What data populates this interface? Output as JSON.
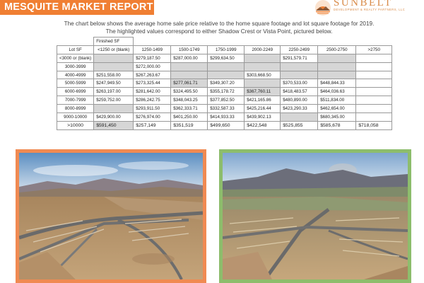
{
  "header": {
    "title": "MESQUITE MARKET REPORT",
    "logo_name": "SUNBELT",
    "logo_tagline": "DEVELOPMENT & REALTY PARTNERS, LLC",
    "logo_icon": "sunset-mountain-icon",
    "accent_color": "#f07f33"
  },
  "description": {
    "line1": "The chart below shows the average home sale price relative to the home square footage and lot square footage for 2019.",
    "line2": "The highlighted values correspond to either Shadow Crest or Vista Point, pictured below."
  },
  "table": {
    "finished_sf_label": "Finished SF",
    "lot_sf_label": "Lot SF",
    "columns": [
      "<1250 or (blank)",
      "1250-1499",
      "1500-1749",
      "1750-1999",
      "2000-2249",
      "2250-2499",
      "2500-2750",
      ">2750"
    ],
    "highlight_color": "#d6d6d6",
    "rows": [
      {
        "label": "<3000 or (blank)",
        "cells": [
          "",
          "$279,187.50",
          "$287,000.00",
          "$299,634.50",
          "",
          "$291,579.71",
          "",
          ""
        ],
        "hl": [
          true,
          false,
          false,
          false,
          true,
          false,
          true,
          false
        ]
      },
      {
        "label": "3000-3999",
        "cells": [
          "",
          "$272,000.00",
          "",
          "",
          "",
          "",
          "",
          ""
        ],
        "hl": [
          true,
          false,
          true,
          true,
          true,
          true,
          true,
          false
        ]
      },
      {
        "label": "4000-4999",
        "cells": [
          "$251,558.00",
          "$267,263.67",
          "",
          "",
          "$303,668.50",
          "",
          "",
          ""
        ],
        "hl": [
          false,
          false,
          true,
          true,
          false,
          true,
          true,
          false
        ]
      },
      {
        "label": "5000-5999",
        "cells": [
          "$247,949.50",
          "$273,325.44",
          "$277,061.71",
          "$349,307.20",
          "",
          "$370,533.00",
          "$448,844.33",
          ""
        ],
        "hl": [
          false,
          false,
          true,
          false,
          true,
          false,
          false,
          false
        ]
      },
      {
        "label": "6000-6999",
        "cells": [
          "$263,197.00",
          "$281,642.00",
          "$324,495.50",
          "$355,178.72",
          "$367,760.11",
          "$418,483.57",
          "$464,036.63",
          ""
        ],
        "hl": [
          false,
          false,
          false,
          false,
          true,
          false,
          false,
          false
        ]
      },
      {
        "label": "7000-7999",
        "cells": [
          "$259,752.00",
          "$286,242.75",
          "$348,043.25",
          "$377,852.50",
          "$421,165.86",
          "$480,890.00",
          "$511,834.00",
          ""
        ],
        "hl": [
          false,
          false,
          false,
          false,
          false,
          false,
          false,
          false
        ]
      },
      {
        "label": "8000-8999",
        "cells": [
          "",
          "$293,911.50",
          "$362,333.71",
          "$332,587.33",
          "$425,216.44",
          "$423,290.33",
          "$462,654.00",
          ""
        ],
        "hl": [
          true,
          false,
          false,
          false,
          false,
          false,
          false,
          false
        ]
      },
      {
        "label": "9000-10000",
        "cells": [
          "$429,900.00",
          "$276,974.00",
          "$401,250.00",
          "$414,933.33",
          "$439,902.13",
          "",
          "$680,345.00",
          ""
        ],
        "hl": [
          false,
          false,
          false,
          false,
          false,
          true,
          false,
          false
        ]
      },
      {
        "label": ">10000",
        "cells": [
          "$591,450",
          "$257,149",
          "$351,519",
          "$499,650",
          "$422,548",
          "$525,855",
          "$585,678",
          "$718,058"
        ],
        "hl": [
          true,
          false,
          false,
          false,
          false,
          false,
          false,
          false
        ]
      }
    ]
  },
  "photos": {
    "left": {
      "frame_color": "#f08a52",
      "content": "aerial-subdivision-photo"
    },
    "right": {
      "frame_color": "#8dbd6c",
      "content": "aerial-subdivision-photo"
    }
  }
}
